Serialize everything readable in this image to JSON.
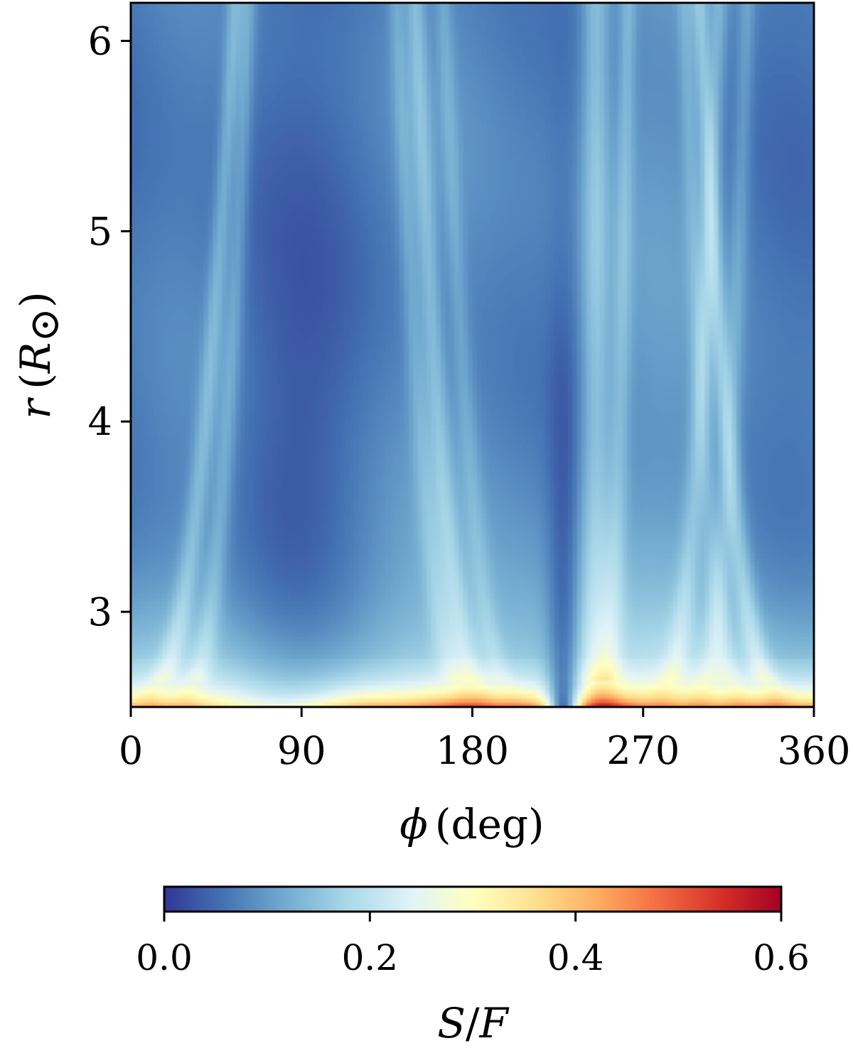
{
  "chart_data": {
    "type": "heatmap",
    "title": "",
    "xlabel": "ϕ (deg)",
    "xlabel_parts": {
      "symbol": "ϕ",
      "unit": "(deg)"
    },
    "ylabel": "r (R⊙)",
    "ylabel_parts": {
      "symbol": "r",
      "open": "(",
      "R": "R",
      "sub": "⊙",
      "close": ")"
    },
    "xlim": [
      0,
      360
    ],
    "ylim": [
      2.5,
      6.2
    ],
    "x_ticks": [
      0,
      90,
      180,
      270,
      360
    ],
    "x_tick_labels": [
      "0",
      "90",
      "180",
      "270",
      "360"
    ],
    "y_ticks": [
      3,
      4,
      5,
      6
    ],
    "y_tick_labels": [
      "3",
      "4",
      "5",
      "6"
    ],
    "grid": false,
    "colorbar": {
      "label": "S/F",
      "label_parts": {
        "S": "S",
        "slash": "/",
        "F": "F"
      },
      "orientation": "horizontal",
      "placement": "bottom",
      "range": [
        0.0,
        0.6
      ],
      "ticks": [
        0.0,
        0.2,
        0.4,
        0.6
      ],
      "tick_labels": [
        "0.0",
        "0.2",
        "0.4",
        "0.6"
      ],
      "colormap": "RdYlBu_r",
      "colors": [
        "#313695",
        "#4575b4",
        "#74add1",
        "#abd9e9",
        "#e0f3f8",
        "#ffffbf",
        "#fee090",
        "#fdae61",
        "#f46d43",
        "#d73027",
        "#a50026"
      ]
    },
    "features": {
      "background_level": 0.06,
      "bright_edge_at_inner_radius": {
        "r": 2.52,
        "value_range": [
          0.3,
          0.55
        ]
      },
      "dark_gap_phi": 228,
      "streamer_bands_phi": [
        22,
        45,
        120,
        155,
        160,
        210,
        228,
        240,
        262,
        290,
        305,
        310,
        330
      ]
    }
  }
}
